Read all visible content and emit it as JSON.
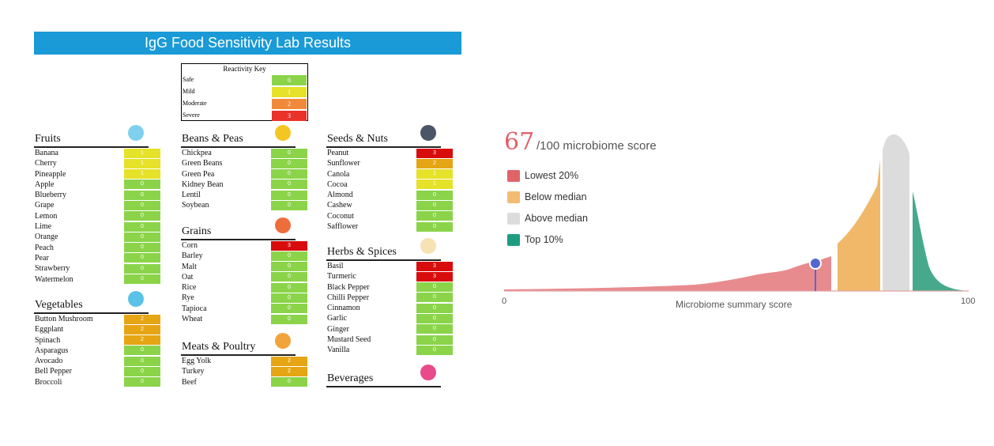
{
  "lab": {
    "title": "IgG Food Sensitivity Lab Results",
    "key": {
      "title": "Reactivity Key",
      "rows": [
        {
          "label": "Safe",
          "value": "0",
          "color": "#8bd44a"
        },
        {
          "label": "Mild",
          "value": "1",
          "color": "#e6e22a"
        },
        {
          "label": "Moderate",
          "value": "2",
          "color": "#f08a3a"
        },
        {
          "label": "Severe",
          "value": "3",
          "color": "#e8322a"
        }
      ]
    },
    "level_colors": {
      "0": "#8bd44a",
      "1": "#e6e22a",
      "2": "#e6a514",
      "3": "#d80c0c"
    },
    "categories": [
      {
        "name": "Fruits",
        "icon": "apple-icon",
        "icon_color": "#7fd0ee",
        "icon_glyph": "●",
        "items": [
          [
            "Banana",
            "1"
          ],
          [
            "Cherry",
            "1"
          ],
          [
            "Pineapple",
            "1"
          ],
          [
            "Apple",
            "0"
          ],
          [
            "Blueberry",
            "0"
          ],
          [
            "Grape",
            "0"
          ],
          [
            "Lemon",
            "0"
          ],
          [
            "Lime",
            "0"
          ],
          [
            "Orange",
            "0"
          ],
          [
            "Peach",
            "0"
          ],
          [
            "Pear",
            "0"
          ],
          [
            "Strawberry",
            "0"
          ],
          [
            "Watermelon",
            "0"
          ]
        ]
      },
      {
        "name": "Vegetables",
        "icon": "avocado-icon",
        "icon_color": "#5bc2e7",
        "icon_glyph": "●",
        "items": [
          [
            "Button Mushroom",
            "2"
          ],
          [
            "Eggplant",
            "2"
          ],
          [
            "Spinach",
            "2"
          ],
          [
            "Asparagus",
            "0"
          ],
          [
            "Avocado",
            "0"
          ],
          [
            "Bell Pepper",
            "0"
          ],
          [
            "Broccoli",
            "0"
          ]
        ]
      },
      {
        "name": "Beans & Peas",
        "icon": "peas-icon",
        "icon_color": "#f3c623",
        "icon_glyph": "●",
        "items": [
          [
            "Chickpea",
            "0"
          ],
          [
            "Green Beans",
            "0"
          ],
          [
            "Green Pea",
            "0"
          ],
          [
            "Kidney Bean",
            "0"
          ],
          [
            "Lentil",
            "0"
          ],
          [
            "Soybean",
            "0"
          ]
        ]
      },
      {
        "name": "Grains",
        "icon": "wheat-icon",
        "icon_color": "#ee6e3b",
        "icon_glyph": "●",
        "items": [
          [
            "Corn",
            "3"
          ],
          [
            "Barley",
            "0"
          ],
          [
            "Malt",
            "0"
          ],
          [
            "Oat",
            "0"
          ],
          [
            "Rice",
            "0"
          ],
          [
            "Rye",
            "0"
          ],
          [
            "Tapioca",
            "0"
          ],
          [
            "Wheat",
            "0"
          ]
        ]
      },
      {
        "name": "Meats & Poultry",
        "icon": "drumstick-icon",
        "icon_color": "#f0a43a",
        "icon_glyph": "●",
        "items": [
          [
            "Egg Yolk",
            "2"
          ],
          [
            "Turkey",
            "2"
          ],
          [
            "Beef",
            "0"
          ]
        ]
      },
      {
        "name": "Seeds & Nuts",
        "icon": "coconut-icon",
        "icon_color": "#4a5568",
        "icon_glyph": "●",
        "items": [
          [
            "Peanut",
            "3"
          ],
          [
            "Sunflower",
            "2"
          ],
          [
            "Canola",
            "1"
          ],
          [
            "Cocoa",
            "1"
          ],
          [
            "Almond",
            "0"
          ],
          [
            "Cashew",
            "0"
          ],
          [
            "Coconut",
            "0"
          ],
          [
            "Safflower",
            "0"
          ]
        ]
      },
      {
        "name": "Herbs & Spices",
        "icon": "herb-icon",
        "icon_color": "#f6e2b3",
        "icon_glyph": "●",
        "items": [
          [
            "Basil",
            "3"
          ],
          [
            "Turmeric",
            "3"
          ],
          [
            "Black Pepper",
            "0"
          ],
          [
            "Chilli Pepper",
            "0"
          ],
          [
            "Cinnamon",
            "0"
          ],
          [
            "Garlic",
            "0"
          ],
          [
            "Ginger",
            "0"
          ],
          [
            "Mustard Seed",
            "0"
          ],
          [
            "Vanilla",
            "0"
          ]
        ]
      },
      {
        "name": "Beverages",
        "icon": "cup-icon",
        "icon_color": "#e84a8a",
        "icon_glyph": "●",
        "items": []
      }
    ]
  },
  "microbiome": {
    "score": "67",
    "score_suffix": "/100 microbiome score",
    "score_value": 67,
    "legend": [
      {
        "label": "Lowest 20%",
        "color": "#df6468"
      },
      {
        "label": "Below median",
        "color": "#f2bc74"
      },
      {
        "label": "Above median",
        "color": "#dcdcdc"
      },
      {
        "label": "Top 10%",
        "color": "#1f9c7e"
      }
    ],
    "axis": {
      "min_label": "0",
      "max_label": "100",
      "title": "Microbiome summary score"
    }
  }
}
